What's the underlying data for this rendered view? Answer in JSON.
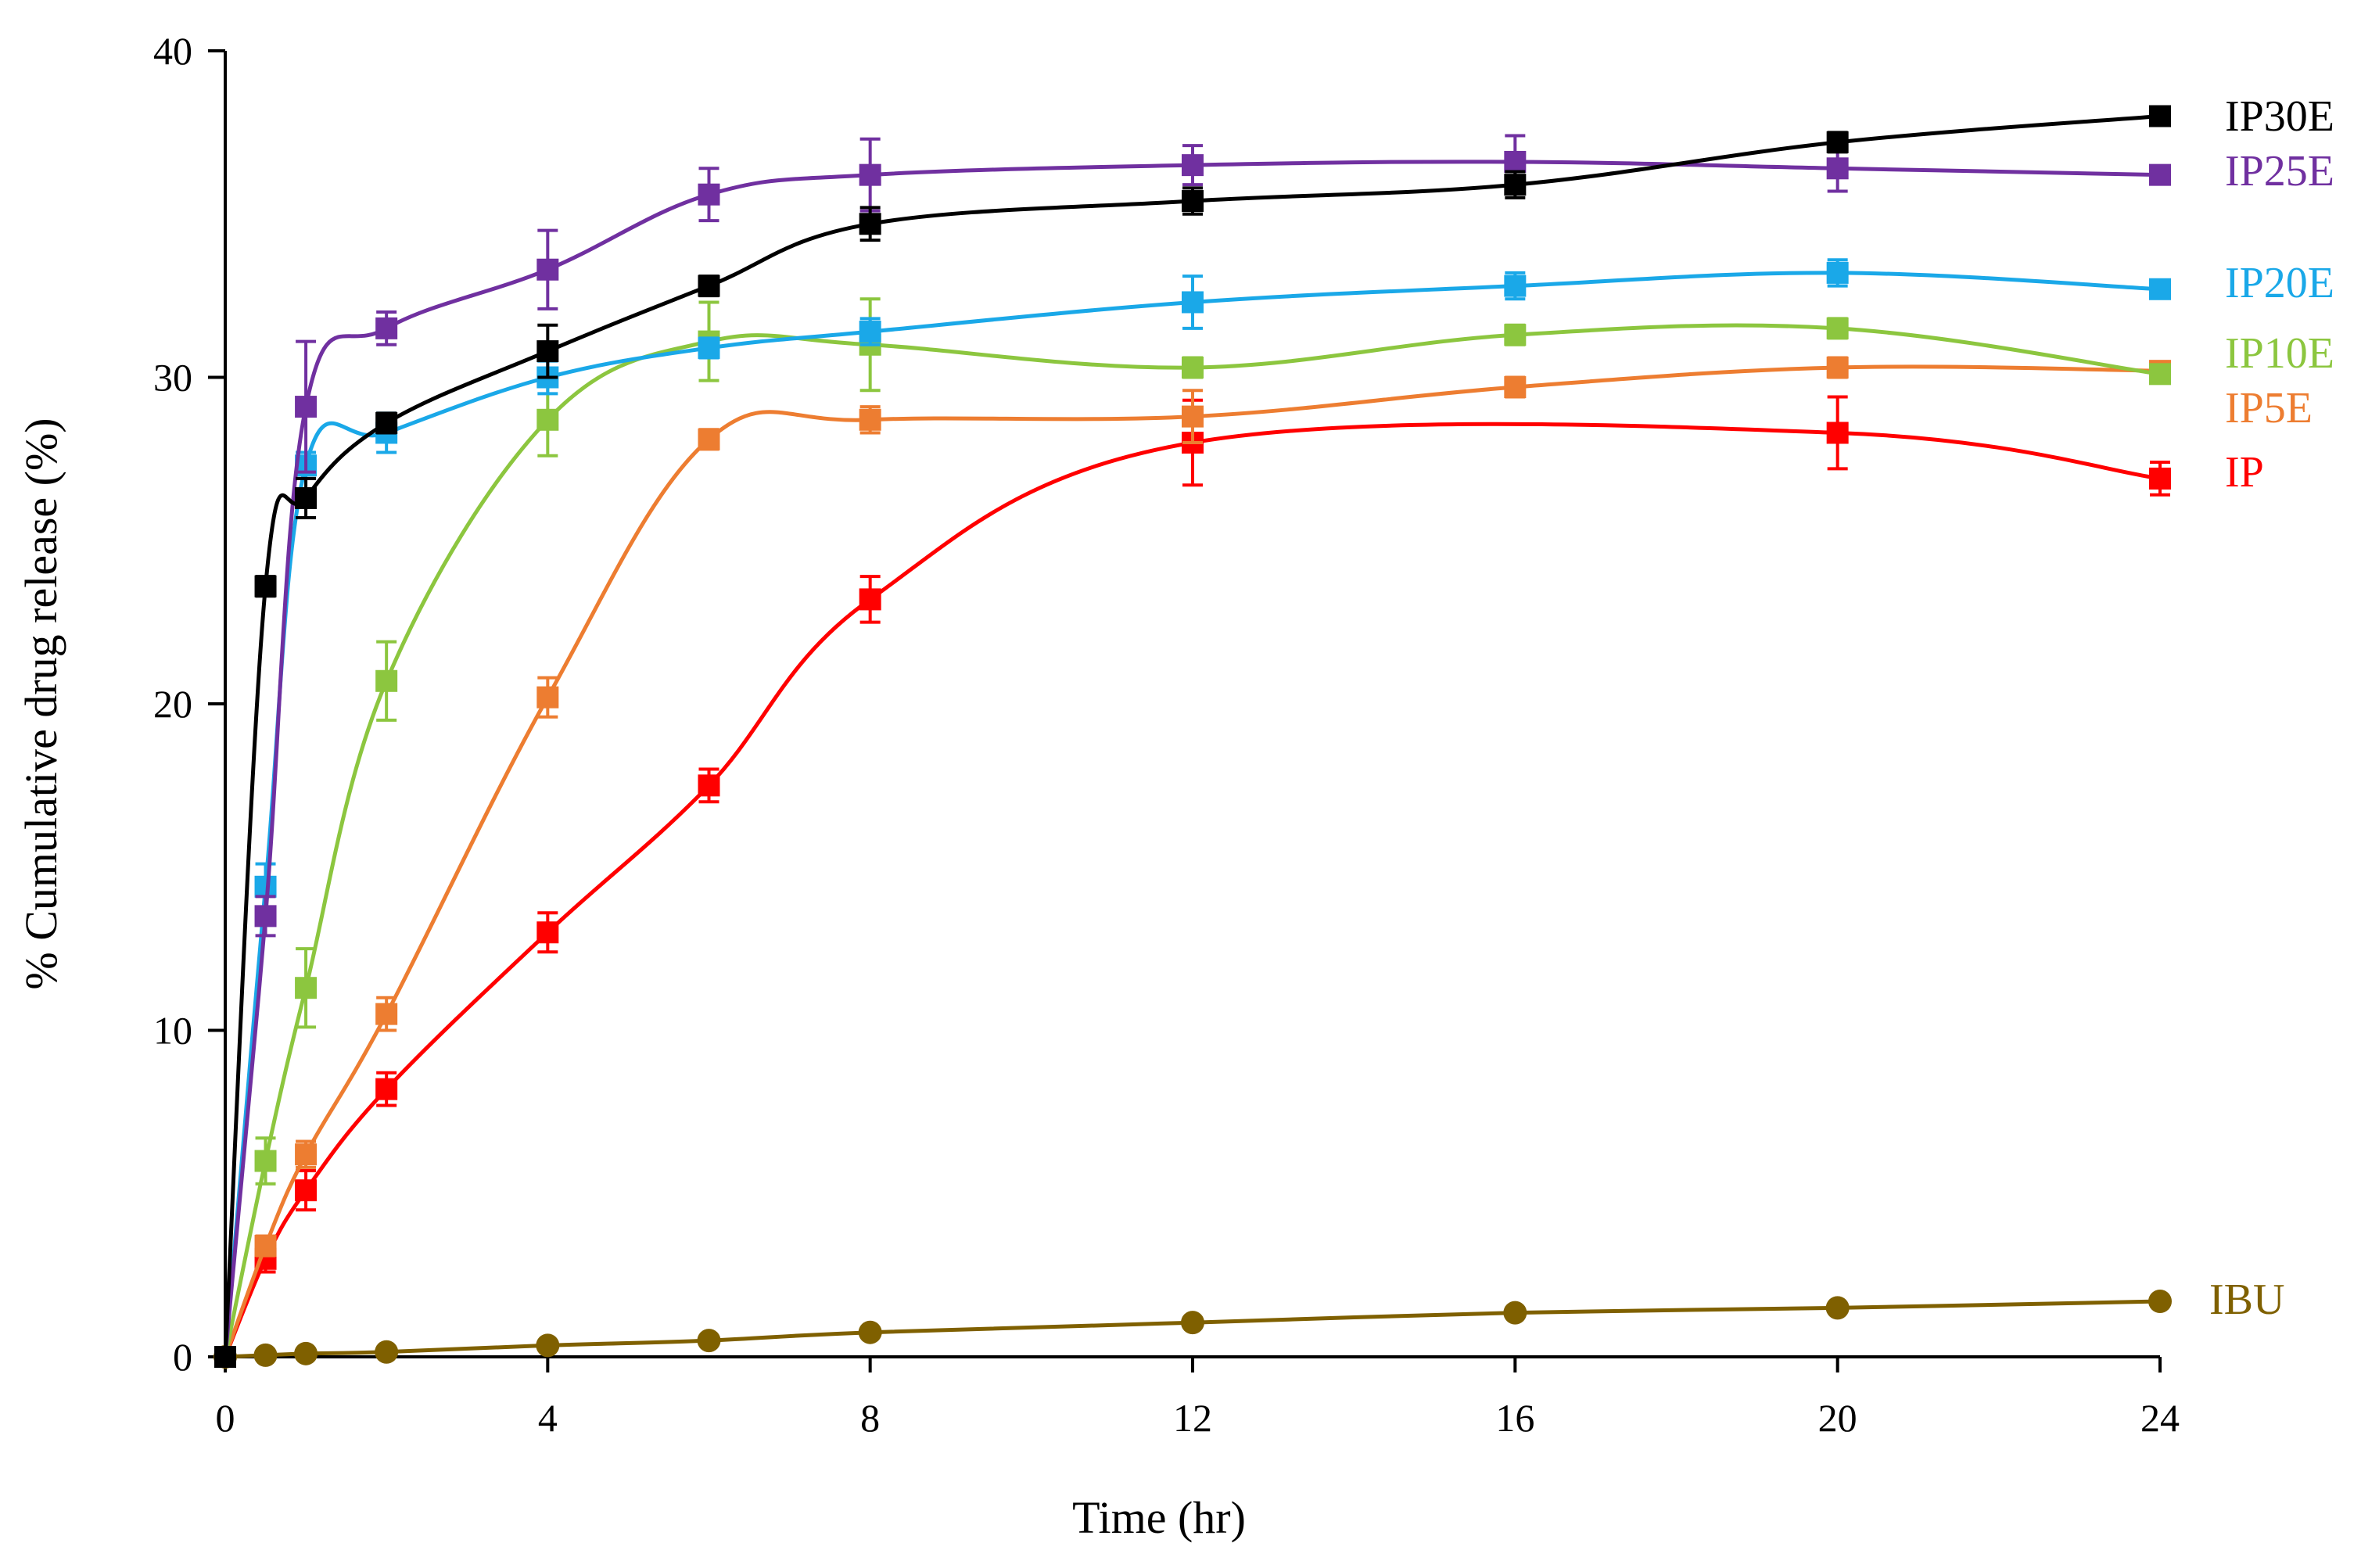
{
  "chart_data": {
    "type": "line",
    "title": "",
    "xlabel": "Time (hr)",
    "ylabel": "% Cumulative drug release (%)",
    "xlim": [
      0,
      24
    ],
    "ylim": [
      0,
      40
    ],
    "xticks": [
      0,
      4,
      8,
      12,
      16,
      20,
      24
    ],
    "yticks": [
      0,
      10,
      20,
      30,
      40
    ],
    "xtick_labels": [
      "0",
      "4",
      "8",
      "12",
      "16",
      "20",
      "24"
    ],
    "ytick_labels": [
      "0",
      "10",
      "20",
      "30",
      "40"
    ],
    "grid": false,
    "legend": "right, inline labels at series ends",
    "series": [
      {
        "name": "IP30E",
        "color": "#000000",
        "marker": "square",
        "points": [
          {
            "x": 0,
            "y": 0,
            "err": 0
          },
          {
            "x": 0.5,
            "y": 23.6,
            "err": 0.3
          },
          {
            "x": 1,
            "y": 26.3,
            "err": 0.6
          },
          {
            "x": 2,
            "y": 28.6,
            "err": 0.3
          },
          {
            "x": 4,
            "y": 30.8,
            "err": 0.8
          },
          {
            "x": 6,
            "y": 32.8,
            "err": 0.3
          },
          {
            "x": 8,
            "y": 34.7,
            "err": 0.5
          },
          {
            "x": 12,
            "y": 35.4,
            "err": 0.4
          },
          {
            "x": 16,
            "y": 35.9,
            "err": 0.4
          },
          {
            "x": 20,
            "y": 37.2,
            "err": 0.3
          },
          {
            "x": 24,
            "y": 38.0,
            "err": 0.2
          }
        ]
      },
      {
        "name": "IP25E",
        "color": "#7030a0",
        "marker": "square",
        "points": [
          {
            "x": 0,
            "y": 0,
            "err": 0
          },
          {
            "x": 0.5,
            "y": 13.5,
            "err": 0.6
          },
          {
            "x": 1,
            "y": 29.1,
            "err": 2.0
          },
          {
            "x": 2,
            "y": 31.5,
            "err": 0.5
          },
          {
            "x": 4,
            "y": 33.3,
            "err": 1.2
          },
          {
            "x": 6,
            "y": 35.6,
            "err": 0.8
          },
          {
            "x": 8,
            "y": 36.2,
            "err": 1.1
          },
          {
            "x": 12,
            "y": 36.5,
            "err": 0.6
          },
          {
            "x": 16,
            "y": 36.6,
            "err": 0.8
          },
          {
            "x": 20,
            "y": 36.4,
            "err": 0.7
          },
          {
            "x": 24,
            "y": 36.2,
            "err": 0.2
          }
        ]
      },
      {
        "name": "IP20E",
        "color": "#1aa8e8",
        "marker": "square",
        "points": [
          {
            "x": 0,
            "y": 0,
            "err": 0
          },
          {
            "x": 0.5,
            "y": 14.4,
            "err": 0.7
          },
          {
            "x": 1,
            "y": 27.3,
            "err": 0.4
          },
          {
            "x": 2,
            "y": 28.3,
            "err": 0.6
          },
          {
            "x": 4,
            "y": 30.0,
            "err": 0.5
          },
          {
            "x": 6,
            "y": 30.9,
            "err": 0.3
          },
          {
            "x": 8,
            "y": 31.4,
            "err": 0.4
          },
          {
            "x": 12,
            "y": 32.3,
            "err": 0.8
          },
          {
            "x": 16,
            "y": 32.8,
            "err": 0.4
          },
          {
            "x": 20,
            "y": 33.2,
            "err": 0.4
          },
          {
            "x": 24,
            "y": 32.7,
            "err": 0.2
          }
        ]
      },
      {
        "name": "IP10E",
        "color": "#8cc63f",
        "marker": "square",
        "points": [
          {
            "x": 0,
            "y": 0,
            "err": 0
          },
          {
            "x": 0.5,
            "y": 6.0,
            "err": 0.7
          },
          {
            "x": 1,
            "y": 11.3,
            "err": 1.2
          },
          {
            "x": 2,
            "y": 20.7,
            "err": 1.2
          },
          {
            "x": 4,
            "y": 28.7,
            "err": 1.1
          },
          {
            "x": 6,
            "y": 31.1,
            "err": 1.2
          },
          {
            "x": 8,
            "y": 31.0,
            "err": 1.4
          },
          {
            "x": 12,
            "y": 30.3,
            "err": 0.3
          },
          {
            "x": 16,
            "y": 31.3,
            "err": 0.3
          },
          {
            "x": 20,
            "y": 31.5,
            "err": 0.3
          },
          {
            "x": 24,
            "y": 30.1,
            "err": 0.2
          }
        ]
      },
      {
        "name": "IP5E",
        "color": "#ed7d31",
        "marker": "square",
        "points": [
          {
            "x": 0,
            "y": 0,
            "err": 0
          },
          {
            "x": 0.5,
            "y": 3.4,
            "err": 0.3
          },
          {
            "x": 1,
            "y": 6.2,
            "err": 0.4
          },
          {
            "x": 2,
            "y": 10.5,
            "err": 0.5
          },
          {
            "x": 4,
            "y": 20.2,
            "err": 0.6
          },
          {
            "x": 6,
            "y": 28.1,
            "err": 0.3
          },
          {
            "x": 8,
            "y": 28.7,
            "err": 0.4
          },
          {
            "x": 12,
            "y": 28.8,
            "err": 0.8
          },
          {
            "x": 16,
            "y": 29.7,
            "err": 0.3
          },
          {
            "x": 20,
            "y": 30.3,
            "err": 0.3
          },
          {
            "x": 24,
            "y": 30.2,
            "err": 0.2
          }
        ]
      },
      {
        "name": "IP",
        "color": "#ff0000",
        "marker": "square",
        "points": [
          {
            "x": 0,
            "y": 0,
            "err": 0
          },
          {
            "x": 0.5,
            "y": 3.0,
            "err": 0.4
          },
          {
            "x": 1,
            "y": 5.1,
            "err": 0.6
          },
          {
            "x": 2,
            "y": 8.2,
            "err": 0.5
          },
          {
            "x": 4,
            "y": 13.0,
            "err": 0.6
          },
          {
            "x": 6,
            "y": 17.5,
            "err": 0.5
          },
          {
            "x": 8,
            "y": 23.2,
            "err": 0.7
          },
          {
            "x": 12,
            "y": 28.0,
            "err": 1.3
          },
          {
            "x": 20,
            "y": 28.3,
            "err": 1.1
          },
          {
            "x": 24,
            "y": 26.9,
            "err": 0.5
          }
        ]
      },
      {
        "name": "IBU",
        "color": "#7f6000",
        "marker": "circle",
        "points": [
          {
            "x": 0,
            "y": 0,
            "err": 0
          },
          {
            "x": 0.5,
            "y": 0.05,
            "err": 0
          },
          {
            "x": 1,
            "y": 0.1,
            "err": 0
          },
          {
            "x": 2,
            "y": 0.15,
            "err": 0
          },
          {
            "x": 4,
            "y": 0.35,
            "err": 0
          },
          {
            "x": 6,
            "y": 0.5,
            "err": 0
          },
          {
            "x": 8,
            "y": 0.75,
            "err": 0
          },
          {
            "x": 12,
            "y": 1.05,
            "err": 0
          },
          {
            "x": 16,
            "y": 1.35,
            "err": 0
          },
          {
            "x": 20,
            "y": 1.5,
            "err": 0
          },
          {
            "x": 24,
            "y": 1.7,
            "err": 0
          }
        ]
      }
    ]
  }
}
